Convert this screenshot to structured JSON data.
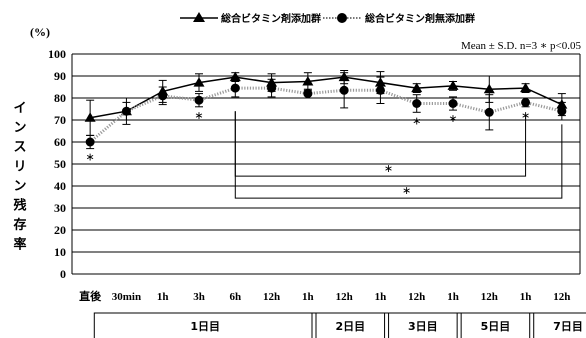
{
  "chart_data": {
    "type": "line",
    "unit_label": "(%)",
    "ylabel": "インスリン残存率",
    "ylim": [
      0,
      100
    ],
    "yticks": [
      0,
      10,
      20,
      30,
      40,
      50,
      60,
      70,
      80,
      90,
      100
    ],
    "grid": true,
    "legend_position": "top",
    "note": "Mean ± S.D.  n=3  ∗  p<0.05",
    "categories": [
      "直後",
      "30min",
      "1h",
      "3h",
      "6h",
      "12h",
      "1h",
      "12h",
      "1h",
      "12h",
      "1h",
      "12h",
      "1h",
      "12h"
    ],
    "day_groups": [
      {
        "label": "1日目",
        "span": 6
      },
      {
        "label": "2日目",
        "span": 2
      },
      {
        "label": "3日目",
        "span": 2
      },
      {
        "label": "5日目",
        "span": 2
      },
      {
        "label": "7日目",
        "span": 2
      }
    ],
    "series": [
      {
        "name": "総合ビタミン剤添加群",
        "marker": "triangle",
        "line_style": "solid",
        "values": [
          71,
          74,
          83,
          87,
          89.5,
          87,
          87.5,
          89.5,
          87,
          84.5,
          85.5,
          84,
          84.5,
          77
        ],
        "errors": [
          8,
          6,
          5,
          4,
          2,
          4,
          4,
          3,
          5,
          2,
          2,
          6,
          2,
          5
        ]
      },
      {
        "name": "総合ビタミン剤無添加群",
        "marker": "circle",
        "line_style": "dotted",
        "values": [
          60,
          74,
          81,
          79,
          84.5,
          84.5,
          82,
          83.5,
          83.5,
          77.5,
          77.5,
          73.5,
          78,
          74
        ],
        "errors": [
          3,
          4,
          4,
          3,
          4,
          4,
          2,
          8,
          6,
          4,
          3,
          8,
          2,
          4
        ]
      }
    ],
    "significance_points": [
      "直後",
      "3h",
      "12h",
      "1h",
      "1h"
    ],
    "brackets": [
      {
        "from": "6h",
        "to": "1h",
        "label": "∗"
      },
      {
        "from": "6h",
        "to": "12h",
        "label": "∗"
      }
    ]
  }
}
